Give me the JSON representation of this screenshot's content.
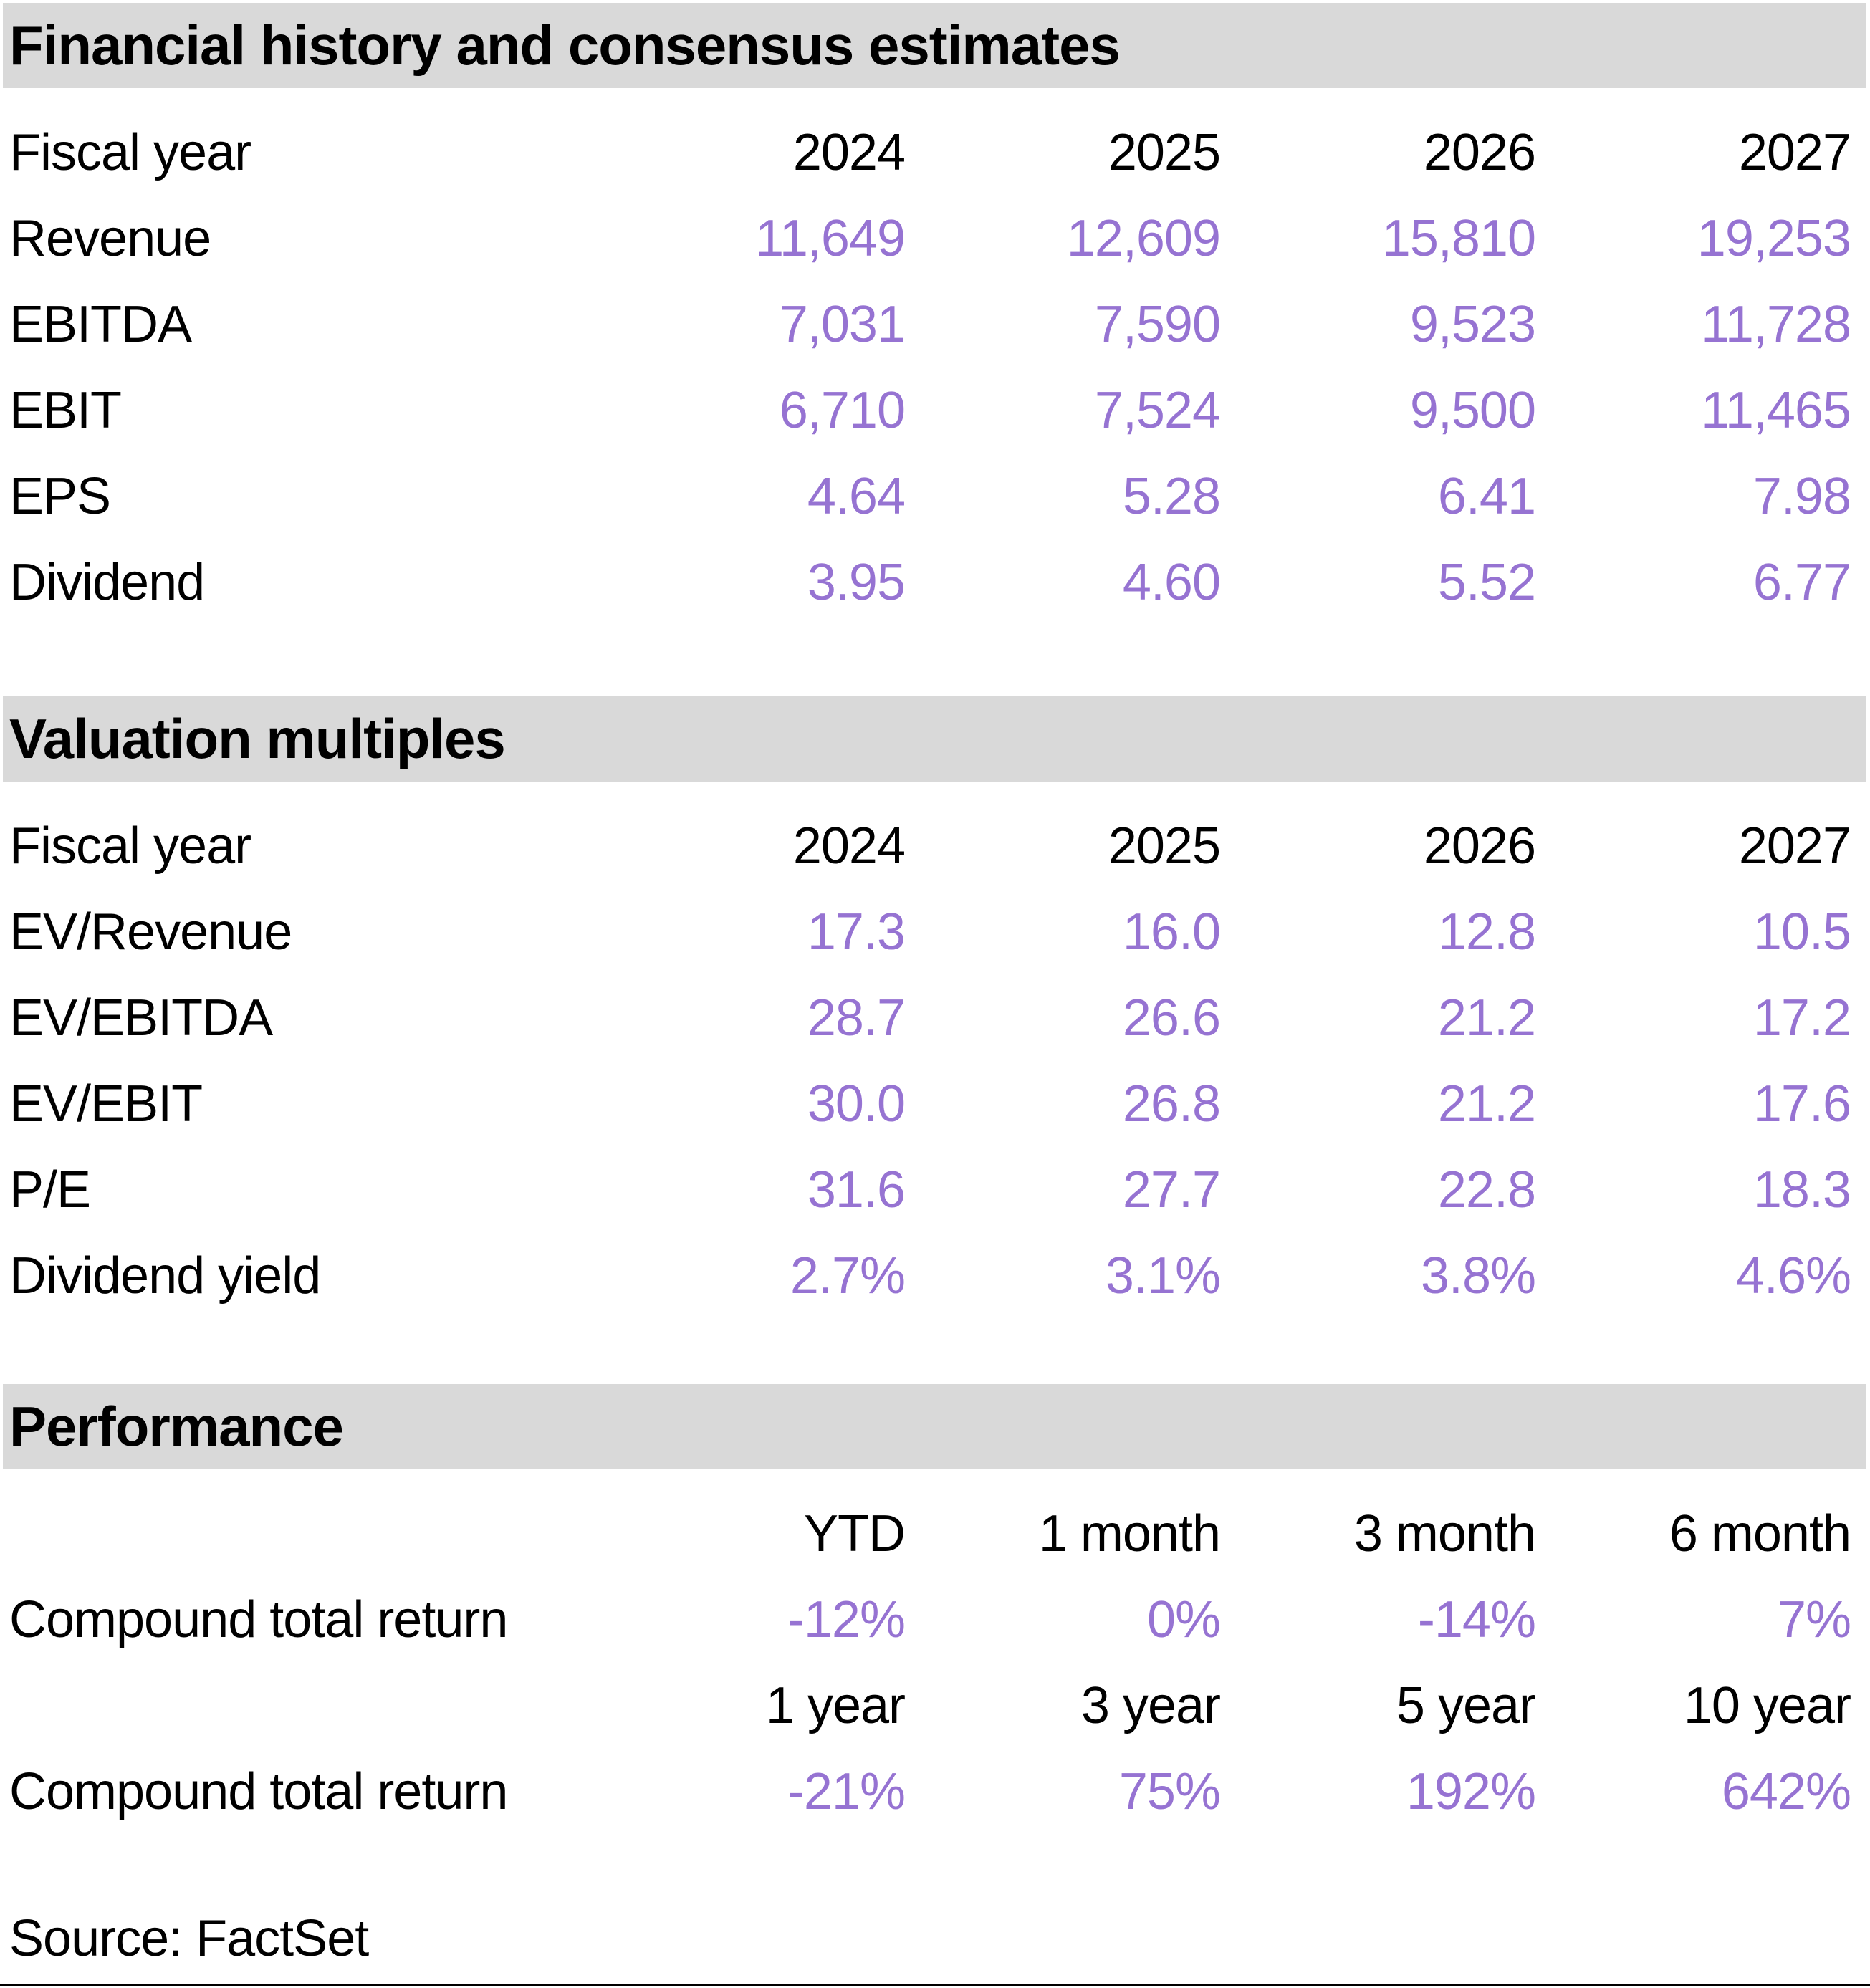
{
  "colors": {
    "accent_purple": "#9673d2",
    "section_header_bg": "#d9d9d9",
    "text": "#000000"
  },
  "sections": [
    {
      "title": "Financial history and consensus estimates",
      "header_row": {
        "label": "Fiscal year",
        "cols": [
          "2024",
          "2025",
          "2026",
          "2027"
        ]
      },
      "rows": [
        {
          "label": "Revenue",
          "values": [
            "11,649",
            "12,609",
            "15,810",
            "19,253"
          ]
        },
        {
          "label": "EBITDA",
          "values": [
            "7,031",
            "7,590",
            "9,523",
            "11,728"
          ]
        },
        {
          "label": "EBIT",
          "values": [
            "6,710",
            "7,524",
            "9,500",
            "11,465"
          ]
        },
        {
          "label": "EPS",
          "values": [
            "4.64",
            "5.28",
            "6.41",
            "7.98"
          ]
        },
        {
          "label": "Dividend",
          "values": [
            "3.95",
            "4.60",
            "5.52",
            "6.77"
          ]
        }
      ]
    },
    {
      "title": "Valuation multiples",
      "header_row": {
        "label": "Fiscal year",
        "cols": [
          "2024",
          "2025",
          "2026",
          "2027"
        ]
      },
      "rows": [
        {
          "label": "EV/Revenue",
          "values": [
            "17.3",
            "16.0",
            "12.8",
            "10.5"
          ]
        },
        {
          "label": "EV/EBITDA",
          "values": [
            "28.7",
            "26.6",
            "21.2",
            "17.2"
          ]
        },
        {
          "label": "EV/EBIT",
          "values": [
            "30.0",
            "26.8",
            "21.2",
            "17.6"
          ]
        },
        {
          "label": "P/E",
          "values": [
            "31.6",
            "27.7",
            "22.8",
            "18.3"
          ]
        },
        {
          "label": "Dividend yield",
          "values": [
            "2.7%",
            "3.1%",
            "3.8%",
            "4.6%"
          ]
        }
      ]
    },
    {
      "title": "Performance",
      "groups": [
        {
          "cols": [
            "YTD",
            "1 month",
            "3 month",
            "6 month"
          ],
          "row": {
            "label": "Compound total return",
            "values": [
              "-12%",
              "0%",
              "-14%",
              "7%"
            ]
          }
        },
        {
          "cols": [
            "1 year",
            "3 year",
            "5 year",
            "10 year"
          ],
          "row": {
            "label": "Compound total return",
            "values": [
              "-21%",
              "75%",
              "192%",
              "642%"
            ]
          }
        }
      ]
    }
  ],
  "footer": {
    "source": "Source: FactSet"
  }
}
